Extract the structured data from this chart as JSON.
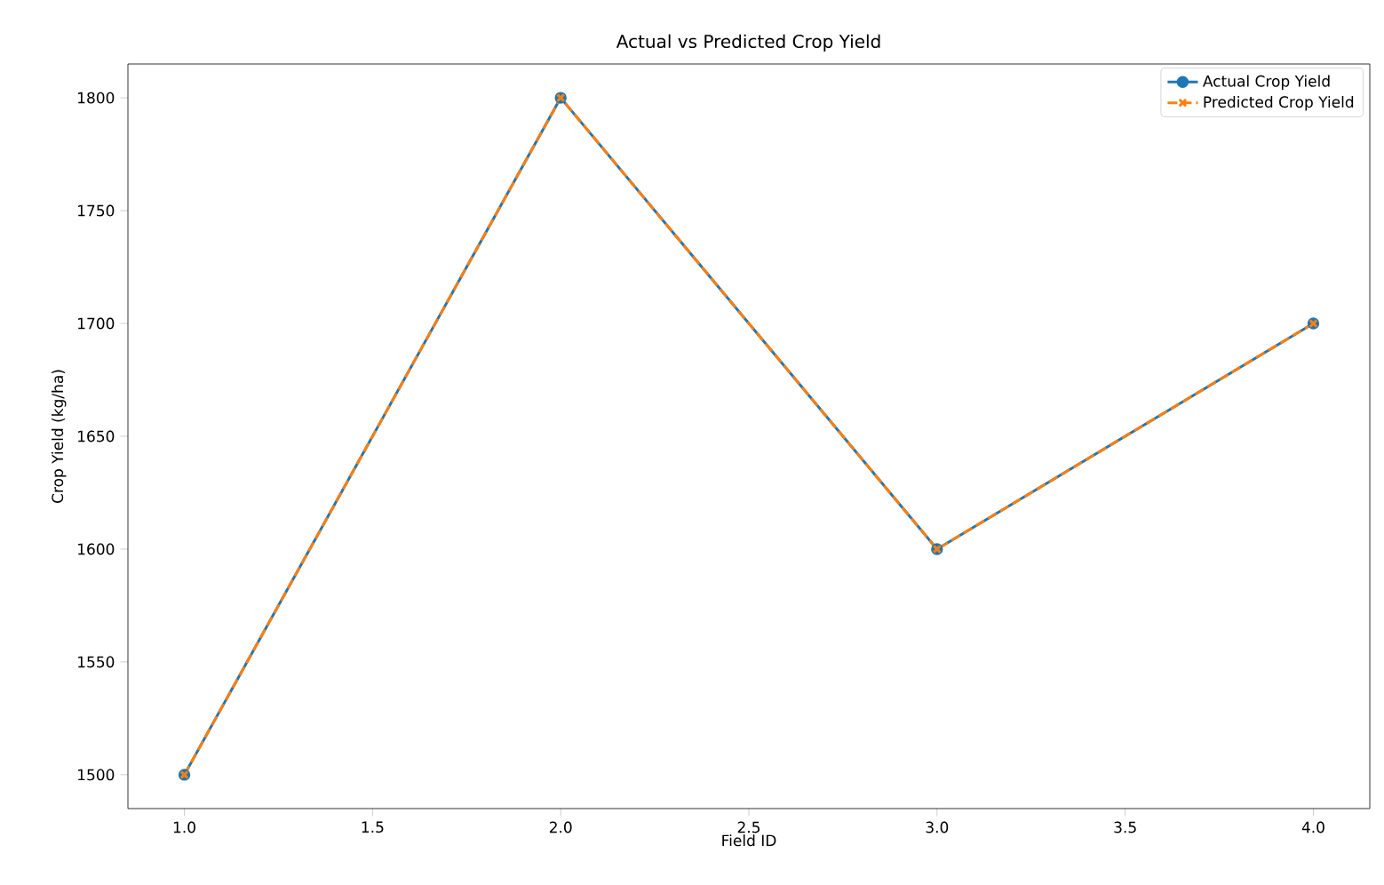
{
  "chart_data": {
    "type": "line",
    "title": "Actual vs Predicted Crop Yield",
    "xlabel": "Field ID",
    "ylabel": "Crop Yield (kg/ha)",
    "x": [
      1,
      2,
      3,
      4
    ],
    "series": [
      {
        "name": "Actual Crop Yield",
        "color": "#1f77b4",
        "values": [
          1500,
          1800,
          1600,
          1700
        ],
        "marker": "circle",
        "line_style": "solid"
      },
      {
        "name": "Predicted Crop Yield",
        "color": "#ff7f0e",
        "values": [
          1500,
          1800,
          1600,
          1700
        ],
        "marker": "cross",
        "line_style": "dashed"
      }
    ],
    "xlim": [
      0.85,
      4.15
    ],
    "ylim": [
      1485,
      1815
    ],
    "xticks": [
      {
        "value": 1,
        "label": "1.0"
      },
      {
        "value": 1.5,
        "label": "1.5"
      },
      {
        "value": 2,
        "label": "2.0"
      },
      {
        "value": 2.5,
        "label": "2.5"
      },
      {
        "value": 3,
        "label": "3.0"
      },
      {
        "value": 3.5,
        "label": "3.5"
      },
      {
        "value": 4,
        "label": "4.0"
      }
    ],
    "yticks": [
      1500,
      1550,
      1600,
      1650,
      1700,
      1750,
      1800
    ],
    "legend": "top right",
    "grid": false
  }
}
